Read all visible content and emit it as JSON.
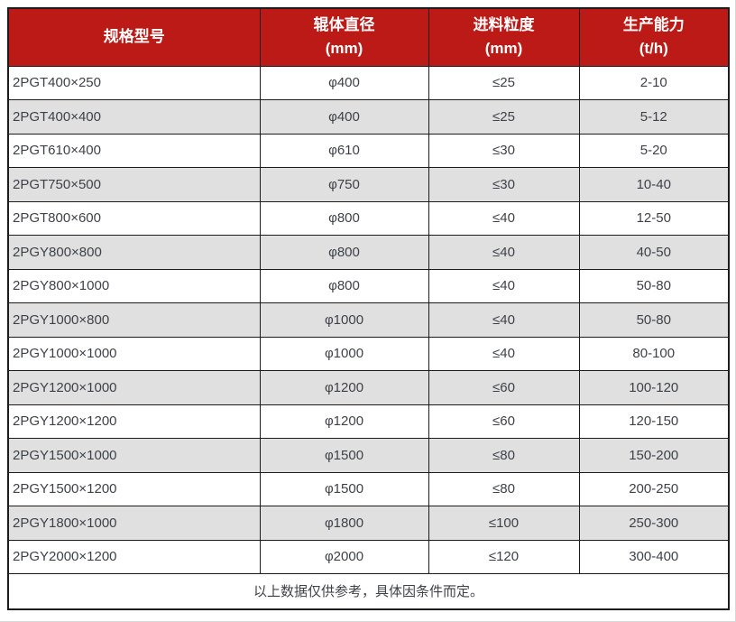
{
  "colors": {
    "header_bg": "#bb1a17",
    "header_text": "#ffffff",
    "row_bg": "#ffffff",
    "row_alt_bg": "#e0e0e0",
    "border": "#1c1c1c",
    "text": "#3e4248"
  },
  "table": {
    "headers": [
      {
        "line1": "规格型号",
        "line2": ""
      },
      {
        "line1": "辊体直径",
        "line2": "(mm)"
      },
      {
        "line1": "进料粒度",
        "line2": "(mm)"
      },
      {
        "line1": "生产能力",
        "line2": "(t/h)"
      }
    ],
    "rows": [
      {
        "model": "2PGT400×250",
        "diameter": "φ400",
        "feed_size": "≤25",
        "capacity": "2-10"
      },
      {
        "model": "2PGT400×400",
        "diameter": "φ400",
        "feed_size": "≤25",
        "capacity": "5-12"
      },
      {
        "model": "2PGT610×400",
        "diameter": "φ610",
        "feed_size": "≤30",
        "capacity": "5-20"
      },
      {
        "model": "2PGT750×500",
        "diameter": "φ750",
        "feed_size": "≤30",
        "capacity": "10-40"
      },
      {
        "model": "2PGT800×600",
        "diameter": "φ800",
        "feed_size": "≤40",
        "capacity": "12-50"
      },
      {
        "model": "2PGY800×800",
        "diameter": "φ800",
        "feed_size": "≤40",
        "capacity": "40-50"
      },
      {
        "model": "2PGY800×1000",
        "diameter": "φ800",
        "feed_size": "≤40",
        "capacity": "50-80"
      },
      {
        "model": "2PGY1000×800",
        "diameter": "φ1000",
        "feed_size": "≤40",
        "capacity": "50-80"
      },
      {
        "model": "2PGY1000×1000",
        "diameter": "φ1000",
        "feed_size": "≤40",
        "capacity": "80-100"
      },
      {
        "model": "2PGY1200×1000",
        "diameter": "φ1200",
        "feed_size": "≤60",
        "capacity": "100-120"
      },
      {
        "model": "2PGY1200×1200",
        "diameter": "φ1200",
        "feed_size": "≤60",
        "capacity": "120-150"
      },
      {
        "model": "2PGY1500×1000",
        "diameter": "φ1500",
        "feed_size": "≤80",
        "capacity": "150-200"
      },
      {
        "model": "2PGY1500×1200",
        "diameter": "φ1500",
        "feed_size": "≤80",
        "capacity": "200-250"
      },
      {
        "model": "2PGY1800×1000",
        "diameter": "φ1800",
        "feed_size": "≤100",
        "capacity": "250-300"
      },
      {
        "model": "2PGY2000×1200",
        "diameter": "φ2000",
        "feed_size": "≤120",
        "capacity": "300-400"
      }
    ],
    "footer_note": "以上数据仅供参考，具体因条件而定。"
  }
}
